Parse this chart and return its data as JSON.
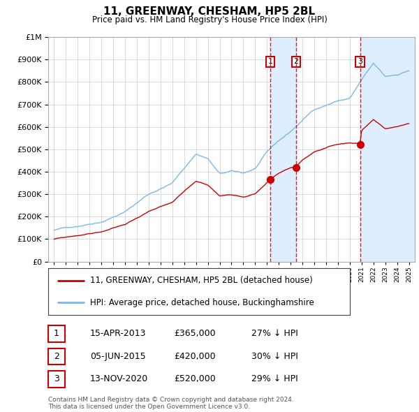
{
  "title": "11, GREENWAY, CHESHAM, HP5 2BL",
  "subtitle": "Price paid vs. HM Land Registry's House Price Index (HPI)",
  "footer": "Contains HM Land Registry data © Crown copyright and database right 2024.\nThis data is licensed under the Open Government Licence v3.0.",
  "legend_line1": "11, GREENWAY, CHESHAM, HP5 2BL (detached house)",
  "legend_line2": "HPI: Average price, detached house, Buckinghamshire",
  "transactions": [
    {
      "num": 1,
      "date": "15-APR-2013",
      "price": 365000,
      "hpi_diff": "27% ↓ HPI",
      "year": 2013.29
    },
    {
      "num": 2,
      "date": "05-JUN-2015",
      "price": 420000,
      "hpi_diff": "30% ↓ HPI",
      "year": 2015.46
    },
    {
      "num": 3,
      "date": "13-NOV-2020",
      "price": 520000,
      "hpi_diff": "29% ↓ HPI",
      "year": 2020.87
    }
  ],
  "hpi_color": "#7ab8e8",
  "price_color": "#cc0000",
  "vline_color": "#cc0000",
  "shade_color": "#ddeeff",
  "plot_bg": "#ffffff",
  "ylim": [
    0,
    1000000
  ],
  "xlim_start": 1994.5,
  "xlim_end": 2025.5
}
